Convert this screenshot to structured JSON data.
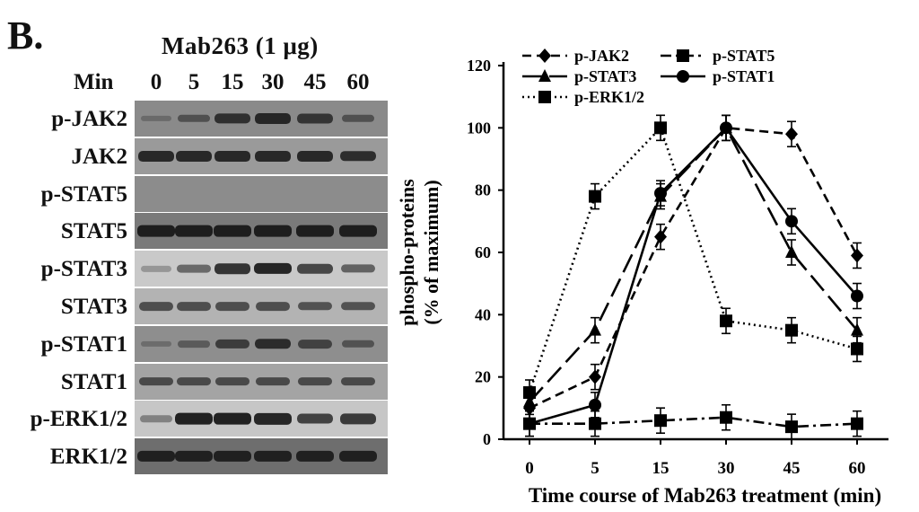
{
  "panel_label": "B.",
  "blot": {
    "title": "Mab263 (1 μg)",
    "min_label": "Min",
    "lanes": [
      "0",
      "5",
      "15",
      "30",
      "45",
      "60"
    ],
    "rows": [
      {
        "label": "p-JAK2",
        "bg": "#8a8a8a",
        "intensity": [
          0.05,
          0.35,
          0.75,
          0.85,
          0.7,
          0.35
        ]
      },
      {
        "label": "JAK2",
        "bg": "#9a9a9a",
        "intensity": [
          0.85,
          0.85,
          0.85,
          0.85,
          0.85,
          0.8
        ]
      },
      {
        "label": "p-STAT5",
        "bg": "#8c8c8c",
        "intensity": [
          0,
          0,
          0,
          0,
          0,
          0
        ]
      },
      {
        "label": "STAT5",
        "bg": "#7a7a7a",
        "intensity": [
          0.95,
          0.95,
          0.95,
          0.95,
          0.95,
          0.95
        ]
      },
      {
        "label": "p-STAT3",
        "bg": "#c9c9c9",
        "intensity": [
          0.05,
          0.4,
          0.8,
          0.9,
          0.65,
          0.45
        ]
      },
      {
        "label": "STAT3",
        "bg": "#b3b3b3",
        "intensity": [
          0.55,
          0.55,
          0.55,
          0.55,
          0.5,
          0.5
        ]
      },
      {
        "label": "p-STAT1",
        "bg": "#8e8e8e",
        "intensity": [
          0.05,
          0.25,
          0.6,
          0.8,
          0.55,
          0.35
        ]
      },
      {
        "label": "STAT1",
        "bg": "#a4a4a4",
        "intensity": [
          0.55,
          0.55,
          0.55,
          0.55,
          0.55,
          0.55
        ]
      },
      {
        "label": "p-ERK1/2",
        "bg": "#c6c6c6",
        "intensity": [
          0.2,
          0.95,
          0.95,
          0.9,
          0.7,
          0.75
        ]
      },
      {
        "label": "ERK1/2",
        "bg": "#6e6e6e",
        "intensity": [
          0.9,
          0.9,
          0.9,
          0.9,
          0.9,
          0.9
        ]
      }
    ]
  },
  "chart_data": {
    "type": "line",
    "x": [
      "0",
      "5",
      "15",
      "30",
      "45",
      "60"
    ],
    "ylabel_line1": "phospho-proteins",
    "ylabel_line2": "(% of maximum)",
    "xlabel": "Time course of Mab263 treatment (min)",
    "ylim": [
      0,
      120
    ],
    "yticks": [
      0,
      20,
      40,
      60,
      80,
      100,
      120
    ],
    "grid": false,
    "legend_position": "top",
    "series": [
      {
        "name": "p-JAK2",
        "marker": "diamond",
        "dash": "dashed",
        "values": [
          10,
          20,
          65,
          100,
          98,
          59
        ]
      },
      {
        "name": "p-STAT5",
        "marker": "square",
        "dash": "dashdot",
        "values": [
          5,
          5,
          6,
          7,
          4,
          5
        ]
      },
      {
        "name": "p-STAT3",
        "marker": "triangle",
        "dash": "longdash",
        "values": [
          12,
          35,
          78,
          100,
          60,
          35
        ]
      },
      {
        "name": "p-STAT1",
        "marker": "circle",
        "dash": "solid",
        "values": [
          5,
          11,
          79,
          100,
          70,
          46
        ]
      },
      {
        "name": "p-ERK1/2",
        "marker": "square",
        "dash": "dotted",
        "values": [
          15,
          78,
          100,
          38,
          35,
          29
        ]
      }
    ]
  }
}
